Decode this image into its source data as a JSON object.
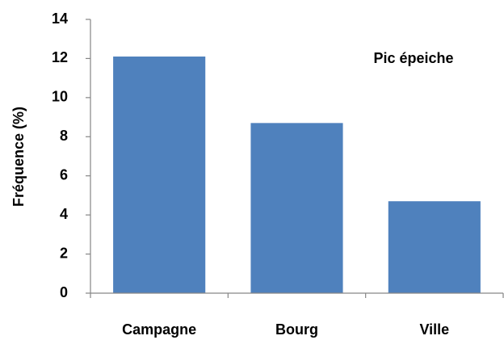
{
  "chart_data": {
    "type": "bar",
    "annotation": "Pic épeiche",
    "y_label": "Fréquence (%)",
    "categories": [
      "Campagne",
      "Bourg",
      "Ville"
    ],
    "values": [
      12.1,
      8.7,
      4.7
    ],
    "color": "#4f81bd",
    "ylim": [
      0,
      14
    ],
    "yticks": [
      0,
      2,
      4,
      6,
      8,
      10,
      12,
      14
    ],
    "grid": false
  }
}
